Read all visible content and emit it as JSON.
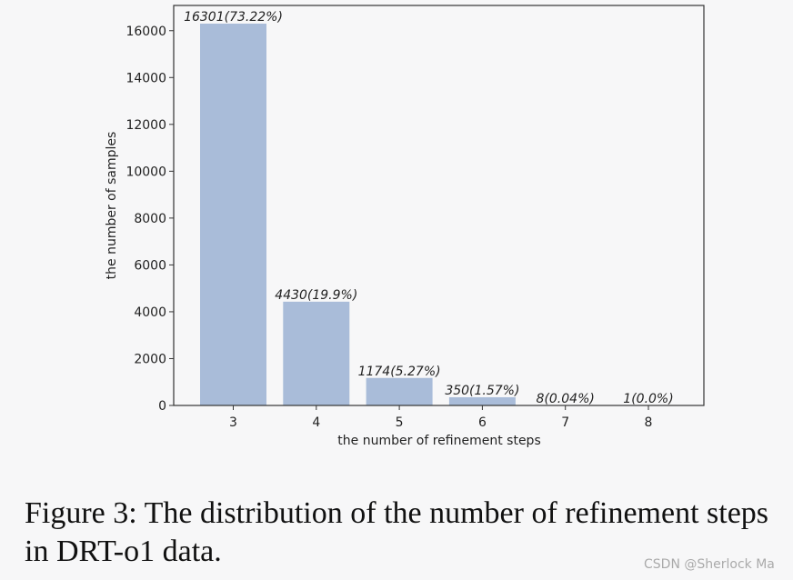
{
  "chart_data": {
    "type": "bar",
    "categories": [
      "3",
      "4",
      "5",
      "6",
      "7",
      "8"
    ],
    "values": [
      16301,
      4430,
      1174,
      350,
      8,
      1
    ],
    "data_labels": [
      "16301(73.22%)",
      "4430(19.9%)",
      "1174(5.27%)",
      "350(1.57%)",
      "8(0.04%)",
      "1(0.0%)"
    ],
    "xlabel": "the number of refinement steps",
    "ylabel": "the number of samples",
    "ylim": [
      0,
      16301
    ],
    "yticks": [
      0,
      2000,
      4000,
      6000,
      8000,
      10000,
      12000,
      14000,
      16000
    ],
    "bar_color": "#a9bcd9",
    "grid": false
  },
  "caption": "Figure 3: The distribution of the number of refinement steps in DRT-o1 data.",
  "watermark": "CSDN @Sherlock  Ma"
}
